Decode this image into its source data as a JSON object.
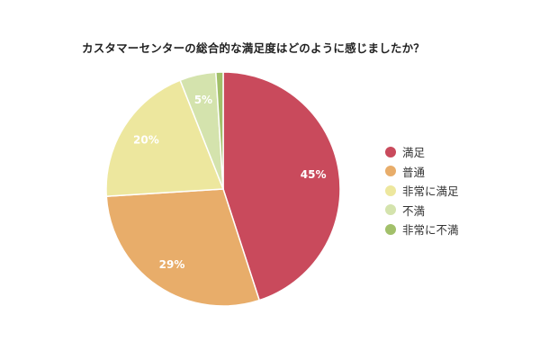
{
  "chart_data": {
    "type": "pie",
    "title": "カスタマーセンターの総合的な満足度はどのように感じましたか？",
    "categories": [
      "満足",
      "普通",
      "非常に満足",
      "不満",
      "非常に不満"
    ],
    "values": [
      45,
      29,
      20,
      5,
      1
    ],
    "labels": [
      "45%",
      "29%",
      "20%",
      "5%",
      ""
    ],
    "colors": [
      "#c94a5c",
      "#e8ad6a",
      "#ede79e",
      "#d4e3ad",
      "#a2c06a"
    ],
    "legend_position": "right"
  }
}
